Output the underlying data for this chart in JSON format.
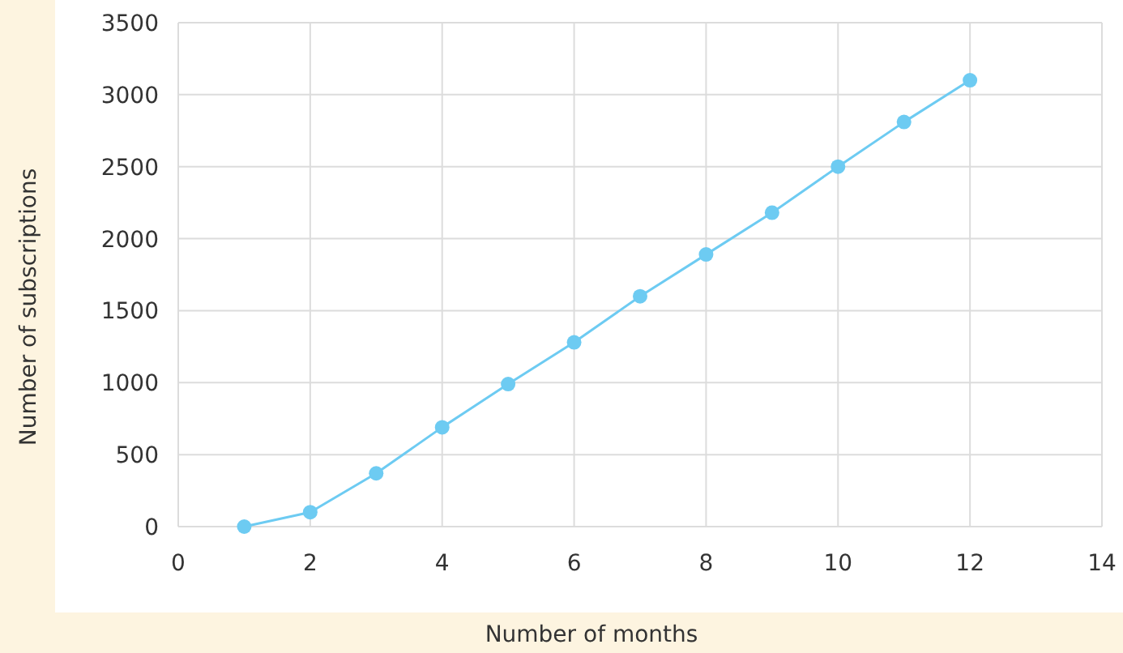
{
  "chart_data": {
    "type": "line",
    "xlabel": "Number of months",
    "ylabel": "Number of subscriptions",
    "x": [
      1,
      2,
      3,
      4,
      5,
      6,
      7,
      8,
      9,
      10,
      11,
      12
    ],
    "series": [
      {
        "color": "#6dcbf2",
        "values": [
          0,
          100,
          370,
          690,
          990,
          1280,
          1600,
          1890,
          2180,
          2500,
          2810,
          3100
        ]
      }
    ],
    "xlim": [
      0,
      14
    ],
    "xticks": [
      0,
      2,
      4,
      6,
      8,
      10,
      12,
      14
    ],
    "ylim": [
      0,
      3500
    ],
    "yticks": [
      0,
      500,
      1000,
      1500,
      2000,
      2500,
      3000,
      3500
    ],
    "grid": true,
    "marker": "circle",
    "line_style": "solid"
  }
}
